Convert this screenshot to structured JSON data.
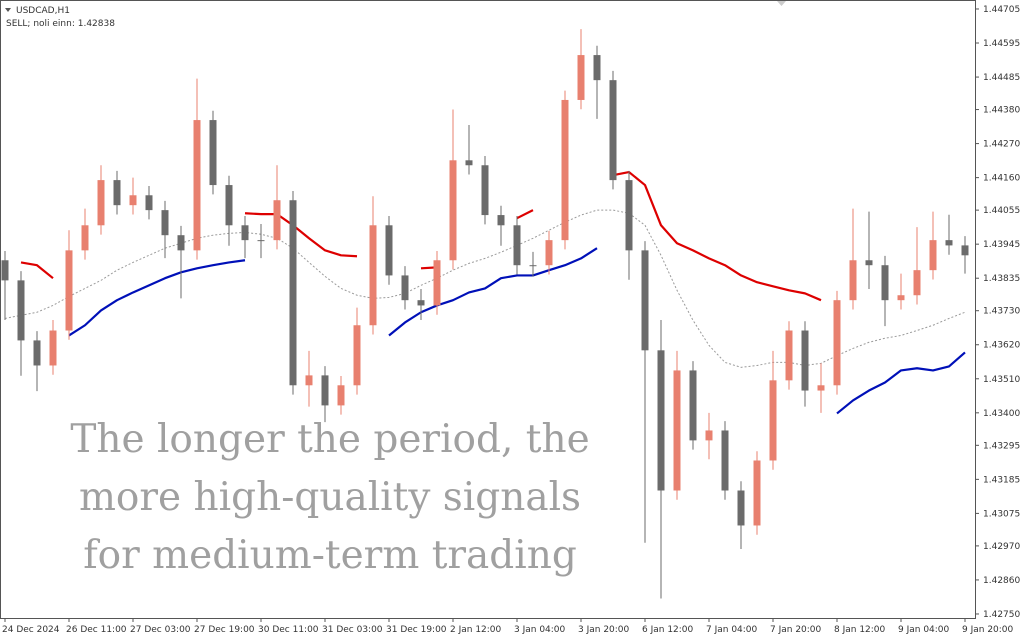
{
  "chart_data": {
    "type": "candlestick",
    "title": "USDCAD,H1",
    "subtitle": "SELL; noli einn: 1.42838",
    "overlay_text": [
      "The longer the period, the",
      "more high-quality signals",
      "for medium-term trading"
    ],
    "categories": [
      "24 Dec 2024",
      null,
      null,
      null,
      "26 Dec 11:00",
      null,
      null,
      null,
      "27 Dec 03:00",
      null,
      null,
      null,
      "27 Dec 19:00",
      null,
      null,
      null,
      "30 Dec 11:00",
      null,
      null,
      null,
      "31 Dec 03:00",
      null,
      null,
      null,
      "31 Dec 19:00",
      null,
      null,
      null,
      "2 Jan 12:00",
      null,
      null,
      null,
      "3 Jan 04:00",
      null,
      null,
      null,
      "3 Jan 20:00",
      null,
      null,
      null,
      "6 Jan 12:00",
      null,
      null,
      null,
      "7 Jan 04:00",
      null,
      null,
      null,
      "7 Jan 20:00",
      null,
      null,
      null,
      "8 Jan 12:00",
      null,
      null,
      null,
      "9 Jan 04:00",
      null,
      null,
      null,
      "9 Jan 20:00"
    ],
    "open": [
      1.43893,
      1.43828,
      1.43634,
      1.43553,
      1.43666,
      1.43925,
      1.44006,
      1.44152,
      1.44071,
      1.44103,
      1.44055,
      1.43974,
      1.43925,
      1.44346,
      1.44136,
      1.44006,
      1.43958,
      1.43958,
      1.44087,
      1.43489,
      1.43521,
      1.43424,
      1.43489,
      1.43683,
      1.44006,
      1.43844,
      1.43764,
      1.43747,
      1.43893,
      1.44216,
      1.442,
      1.44039,
      1.44006,
      1.43877,
      1.43877,
      1.43958,
      1.44411,
      1.44556,
      1.44475,
      1.44152,
      1.43925,
      1.43602,
      1.43149,
      1.43537,
      1.43311,
      1.43343,
      1.43149,
      1.43036,
      1.43246,
      1.43505,
      1.43666,
      1.43472,
      1.43489,
      1.43764,
      1.43893,
      1.43877,
      1.43764,
      1.4378,
      1.43861,
      1.43958,
      1.43941
    ],
    "high": [
      1.43923,
      1.43858,
      1.43664,
      1.437,
      1.4399,
      1.4406,
      1.442,
      1.44182,
      1.4416,
      1.44133,
      1.44085,
      1.44004,
      1.4448,
      1.44376,
      1.44166,
      1.44036,
      1.4401,
      1.442,
      1.44117,
      1.436,
      1.43551,
      1.43519,
      1.4374,
      1.441,
      1.44036,
      1.43874,
      1.438,
      1.43923,
      1.4438,
      1.4433,
      1.4423,
      1.44069,
      1.44036,
      1.4392,
      1.43988,
      1.44441,
      1.4464,
      1.44586,
      1.44505,
      1.44182,
      1.43955,
      1.437,
      1.436,
      1.43567,
      1.434,
      1.43373,
      1.43179,
      1.43276,
      1.436,
      1.43696,
      1.43696,
      1.4356,
      1.43794,
      1.4406,
      1.4405,
      1.43907,
      1.4385,
      1.44,
      1.4405,
      1.4404,
      1.43971
    ],
    "low": [
      1.437,
      1.4352,
      1.4347,
      1.43523,
      1.43636,
      1.43895,
      1.43976,
      1.44041,
      1.44041,
      1.44025,
      1.439,
      1.4377,
      1.43895,
      1.44106,
      1.4394,
      1.439,
      1.439,
      1.43928,
      1.43459,
      1.4342,
      1.4337,
      1.43394,
      1.43459,
      1.43653,
      1.43814,
      1.43734,
      1.437,
      1.43717,
      1.43863,
      1.4417,
      1.44009,
      1.4394,
      1.43847,
      1.4384,
      1.43847,
      1.43928,
      1.44381,
      1.4435,
      1.44122,
      1.4383,
      1.4298,
      1.428,
      1.43119,
      1.43281,
      1.4325,
      1.43119,
      1.4296,
      1.43006,
      1.43216,
      1.43475,
      1.4342,
      1.434,
      1.43459,
      1.43734,
      1.438,
      1.4368,
      1.43734,
      1.4375,
      1.43831,
      1.43911,
      1.4385
    ],
    "close": [
      1.43828,
      1.43634,
      1.43553,
      1.43666,
      1.43925,
      1.44006,
      1.44152,
      1.44071,
      1.44103,
      1.44055,
      1.43974,
      1.43925,
      1.44346,
      1.44136,
      1.44006,
      1.43958,
      1.43958,
      1.44087,
      1.43489,
      1.43521,
      1.43424,
      1.43489,
      1.43683,
      1.44006,
      1.43844,
      1.43764,
      1.43747,
      1.43893,
      1.44216,
      1.442,
      1.44039,
      1.44006,
      1.43877,
      1.43877,
      1.43958,
      1.44411,
      1.44556,
      1.44475,
      1.44152,
      1.43925,
      1.43602,
      1.43149,
      1.43537,
      1.43311,
      1.43343,
      1.43149,
      1.43036,
      1.43246,
      1.43505,
      1.43666,
      1.43472,
      1.43489,
      1.43764,
      1.43893,
      1.43877,
      1.43764,
      1.4378,
      1.43861,
      1.43958,
      1.43941,
      1.43909
    ],
    "up_color": "#e8806f",
    "down_color": "#6b6b6b",
    "lines": [
      {
        "color": "#dd0000",
        "dashed": false,
        "values": [
          null,
          1.43886,
          1.43877,
          1.43835,
          null,
          null,
          null,
          null,
          null,
          null,
          null,
          null,
          null,
          null,
          null,
          1.44045,
          1.44042,
          1.44042,
          1.44006,
          1.43964,
          1.43925,
          1.43909,
          1.43906,
          null,
          null,
          null,
          1.43867,
          1.4387,
          null,
          null,
          null,
          null,
          1.44029,
          1.44055,
          null,
          null,
          null,
          null,
          1.44168,
          1.44178,
          1.44136,
          1.44006,
          1.43948,
          1.43925,
          1.43899,
          1.43877,
          1.43844,
          1.43822,
          1.43809,
          1.43796,
          1.43786,
          1.43764,
          null,
          null,
          null,
          null,
          null,
          null,
          null,
          null,
          null
        ]
      },
      {
        "color": "#0010b8",
        "dashed": false,
        "values": [
          null,
          null,
          null,
          null,
          1.4365,
          1.43683,
          1.43731,
          1.43764,
          1.43789,
          1.43812,
          1.43835,
          1.43854,
          1.43867,
          1.43877,
          1.43886,
          1.43893,
          null,
          null,
          null,
          null,
          null,
          null,
          null,
          null,
          1.4365,
          1.43692,
          1.43725,
          1.43747,
          1.43764,
          1.43789,
          1.43802,
          1.43835,
          1.43844,
          1.43844,
          1.43861,
          1.43877,
          1.43899,
          1.43932,
          null,
          null,
          null,
          null,
          null,
          null,
          null,
          null,
          null,
          null,
          null,
          null,
          null,
          null,
          1.43398,
          1.4344,
          1.43472,
          1.43498,
          1.43537,
          1.43544,
          1.43537,
          1.4355,
          1.43595
        ]
      },
      {
        "color": "#9a9a9a",
        "dashed": true,
        "values": [
          1.43705,
          1.43715,
          1.43725,
          1.43747,
          1.43776,
          1.43802,
          1.43828,
          1.43861,
          1.43886,
          1.43909,
          1.43932,
          1.43948,
          1.43964,
          1.43974,
          1.4398,
          1.43983,
          1.43977,
          1.43964,
          1.43932,
          1.43886,
          1.43841,
          1.43802,
          1.4378,
          1.4377,
          1.43773,
          1.43786,
          1.43812,
          1.43835,
          1.43861,
          1.43883,
          1.43899,
          1.43919,
          1.43941,
          1.43964,
          1.4399,
          1.44016,
          1.44039,
          1.44055,
          1.44055,
          1.44045,
          1.44006,
          1.43909,
          1.43796,
          1.43699,
          1.43618,
          1.43563,
          1.43547,
          1.43553,
          1.43563,
          1.43563,
          1.43553,
          1.4356,
          1.43585,
          1.43608,
          1.43628,
          1.43641,
          1.4365,
          1.43666,
          1.43683,
          1.43705,
          1.43725
        ]
      }
    ],
    "ylim": [
      1.42737,
      1.44734
    ],
    "yticks": [
      1.44705,
      1.44595,
      1.44485,
      {
        "value": 1.4438,
        "label": "1.44380"
      },
      {
        "value": 1.4427,
        "label": "1.44270"
      },
      {
        "value": 1.4416,
        "label": "1.44160"
      },
      1.44055,
      1.43945,
      1.43835,
      {
        "value": 1.4373,
        "label": "1.43730"
      },
      {
        "value": 1.4362,
        "label": "1.43620"
      },
      {
        "value": 1.4351,
        "label": "1.43510"
      },
      {
        "value": 1.434,
        "label": "1.43400"
      },
      1.43295,
      1.43185,
      1.43075,
      {
        "value": 1.4297,
        "label": "1.42970"
      },
      {
        "value": 1.4286,
        "label": "1.42860"
      },
      {
        "value": 1.4275,
        "label": "1.42750"
      }
    ],
    "grid": false
  }
}
